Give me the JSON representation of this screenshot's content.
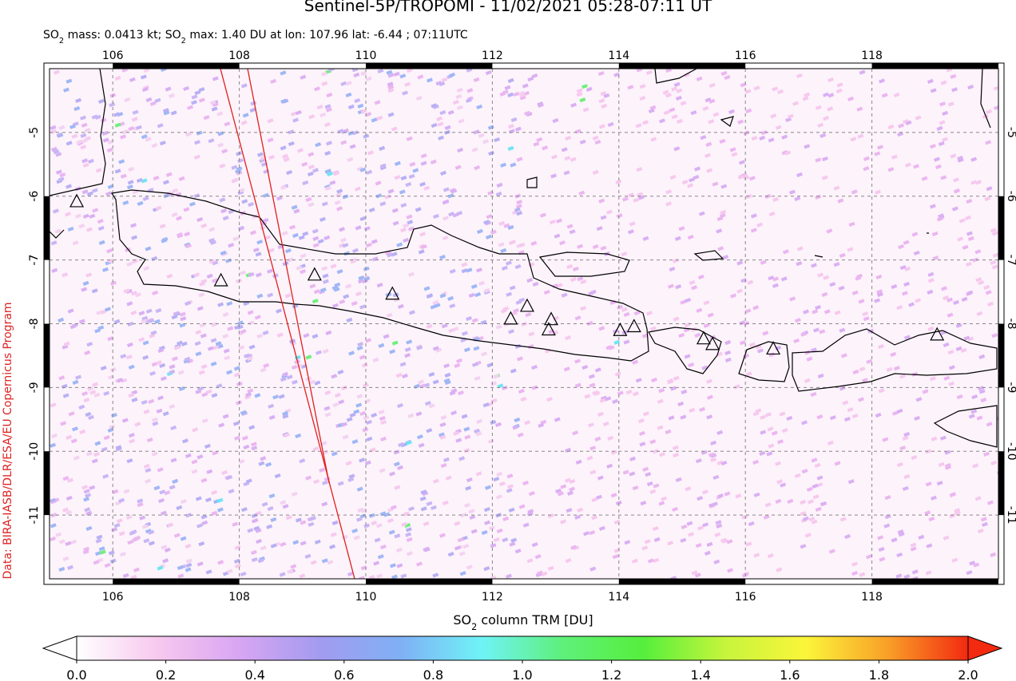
{
  "title": "Sentinel-5P/TROPOMI - 11/02/2021 05:28-07:11 UT",
  "subtitle": [
    "SO",
    "2",
    " mass: 0.0413 kt; SO",
    "2",
    " max: 1.40 DU at lon: 107.96 lat: -6.44 ; 07:11UTC"
  ],
  "credit": "Data: BIRA-IASB/DLR/ESA/EU Copernicus Program",
  "map": {
    "xlim": [
      105,
      120
    ],
    "ylim": [
      -12,
      -4
    ],
    "xticks": [
      106,
      108,
      110,
      112,
      114,
      116,
      118
    ],
    "yticks": [
      -5,
      -6,
      -7,
      -8,
      -9,
      -10,
      -11
    ],
    "volcanoes": [
      [
        105.43,
        -6.09
      ],
      [
        107.71,
        -7.33
      ],
      [
        109.19,
        -7.24
      ],
      [
        110.42,
        -7.54
      ],
      [
        112.29,
        -7.93
      ],
      [
        112.55,
        -7.73
      ],
      [
        112.93,
        -7.94
      ],
      [
        112.89,
        -8.1
      ],
      [
        114.02,
        -8.11
      ],
      [
        114.24,
        -8.05
      ],
      [
        115.34,
        -8.24
      ],
      [
        115.48,
        -8.33
      ],
      [
        116.44,
        -8.4
      ],
      [
        119.03,
        -8.18
      ]
    ]
  },
  "colorbar": {
    "label": [
      "SO",
      "2",
      " column TRM [DU]"
    ],
    "range": [
      0,
      2
    ],
    "ticks": [
      {
        "value": 0,
        "label": "0.0"
      },
      {
        "value": 0.2,
        "label": "0.2"
      },
      {
        "value": 0.4,
        "label": "0.4"
      },
      {
        "value": 0.6,
        "label": "0.6"
      },
      {
        "value": 0.8,
        "label": "0.8"
      },
      {
        "value": 1,
        "label": "1.0"
      },
      {
        "value": 1.2,
        "label": "1.2"
      },
      {
        "value": 1.4,
        "label": "1.4"
      },
      {
        "value": 1.6,
        "label": "1.6"
      },
      {
        "value": 1.8,
        "label": "1.8"
      },
      {
        "value": 2,
        "label": "2.0"
      }
    ],
    "colors": [
      "#ffffff",
      "#f7c8ef",
      "#d8a6f2",
      "#a39bf0",
      "#7fb0f5",
      "#6ff3f7",
      "#5ef07a",
      "#56ef3c",
      "#c6f53c",
      "#fbf53a",
      "#f9a028",
      "#f22a10"
    ]
  }
}
